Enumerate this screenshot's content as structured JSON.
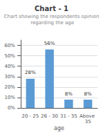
{
  "chart_data": {
    "type": "bar",
    "title": "Chart - 1",
    "subtitle": "Chart showing the respondents opinion regarding the age",
    "categories": [
      "20 - 25",
      "26 - 30",
      "31 - 35",
      "Above 35"
    ],
    "values": [
      28,
      56,
      8,
      8
    ],
    "value_labels": [
      "28%",
      "56%",
      "8%",
      "8%"
    ],
    "data_labels": true,
    "color": "#5b9bd5",
    "xlabel": "age",
    "ylim": [
      0,
      65
    ],
    "yticks": [
      {
        "value": 0,
        "label": "0%"
      },
      {
        "value": 10,
        "label": "10%"
      },
      {
        "value": 20,
        "label": "20%"
      },
      {
        "value": 30,
        "label": "30%"
      },
      {
        "value": 40,
        "label": "40%"
      },
      {
        "value": 50,
        "label": "50%"
      },
      {
        "value": 60,
        "label": "60%"
      }
    ],
    "grid": true
  }
}
